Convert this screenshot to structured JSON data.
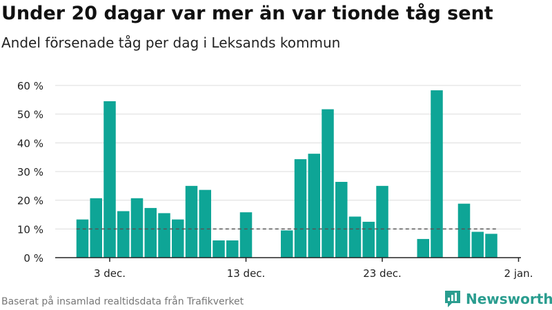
{
  "header": {
    "title": "Under 20 dagar var mer än var tionde tåg sent",
    "subtitle": "Andel försenade tåg per dag i Leksands kommun"
  },
  "footer": {
    "source": "Baserat på insamlad realtidsdata från Trafikverket",
    "brand": "Newsworthy"
  },
  "colors": {
    "bar": "#0ea596",
    "reference_line": "#555555",
    "grid": "#dddddd",
    "brand": "#2a9d8f"
  },
  "chart_data": {
    "type": "bar",
    "title": "Under 20 dagar var mer än var tionde tåg sent",
    "subtitle": "Andel försenade tåg per dag i Leksands kommun",
    "xlabel": "",
    "ylabel": "",
    "unit": "%",
    "ylim": [
      0,
      60
    ],
    "yticks": [
      0,
      10,
      20,
      30,
      40,
      50,
      60
    ],
    "ytick_labels": [
      "0 %",
      "10 %",
      "20 %",
      "30 %",
      "40 %",
      "50 %",
      "60 %"
    ],
    "xticks": [
      {
        "date": "2021-12-03",
        "label": "3 dec."
      },
      {
        "date": "2021-12-13",
        "label": "13 dec."
      },
      {
        "date": "2021-12-23",
        "label": "23 dec."
      },
      {
        "date": "2022-01-02",
        "label": "2 jan."
      }
    ],
    "reference_line": 10,
    "grid": true,
    "legend": "none",
    "dates": [
      "2021-12-01",
      "2021-12-02",
      "2021-12-03",
      "2021-12-04",
      "2021-12-05",
      "2021-12-06",
      "2021-12-07",
      "2021-12-08",
      "2021-12-09",
      "2021-12-10",
      "2021-12-11",
      "2021-12-12",
      "2021-12-13",
      "2021-12-14",
      "2021-12-15",
      "2021-12-16",
      "2021-12-17",
      "2021-12-18",
      "2021-12-19",
      "2021-12-20",
      "2021-12-21",
      "2021-12-22",
      "2021-12-23",
      "2021-12-24",
      "2021-12-25",
      "2021-12-26",
      "2021-12-27",
      "2021-12-28",
      "2021-12-29",
      "2021-12-30",
      "2021-12-31"
    ],
    "values": [
      13.3,
      20.7,
      54.5,
      16.2,
      20.7,
      17.3,
      15.5,
      13.3,
      25.0,
      23.6,
      6.0,
      6.0,
      15.8,
      null,
      null,
      9.5,
      34.3,
      36.2,
      51.7,
      26.4,
      14.3,
      12.5,
      25.0,
      null,
      null,
      6.5,
      58.3,
      null,
      18.8,
      9.0,
      8.3
    ]
  }
}
